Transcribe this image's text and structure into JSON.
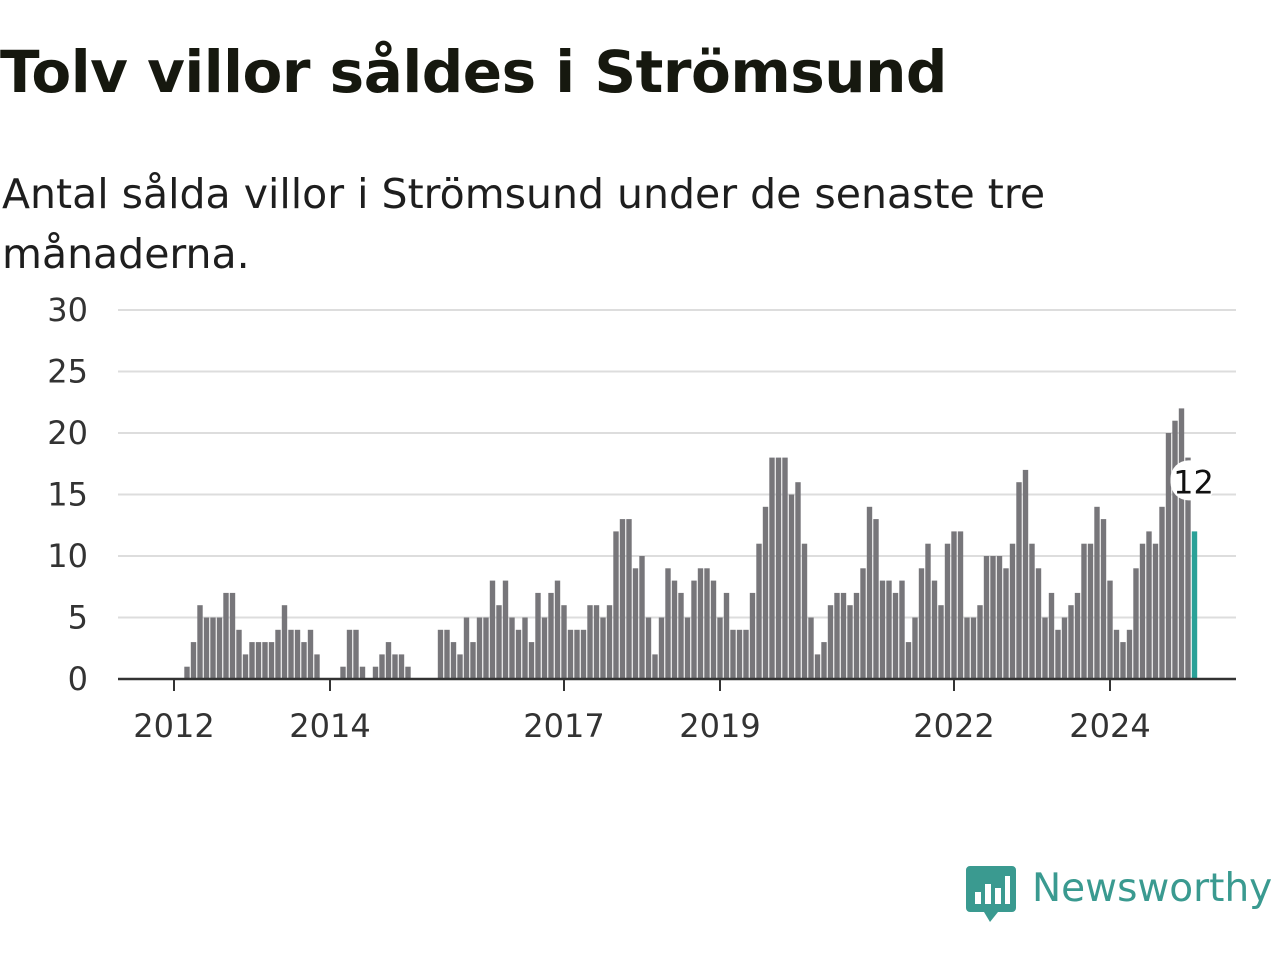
{
  "title": "Tolv villor såldes i Strömsund",
  "subtitle": "Antal sålda villor i Strömsund under de senaste tre månaderna.",
  "brand": {
    "name": "Newsworthy",
    "icon": "newsworthy-logo-icon",
    "color": "#3a9a90"
  },
  "chart_data": {
    "type": "bar",
    "title": "Tolv villor såldes i Strömsund",
    "subtitle": "Antal sålda villor i Strömsund under de senaste tre månaderna.",
    "xlabel": "",
    "ylabel": "",
    "ylim": [
      0,
      30
    ],
    "yticks": [
      "0",
      "5",
      "10",
      "15",
      "20",
      "25",
      "30"
    ],
    "grid": true,
    "xtick_labels": [
      {
        "label": "2012",
        "month_index": 0
      },
      {
        "label": "2014",
        "month_index": 24
      },
      {
        "label": "2017",
        "month_index": 60
      },
      {
        "label": "2019",
        "month_index": 84
      },
      {
        "label": "2022",
        "month_index": 120
      },
      {
        "label": "2024",
        "month_index": 144
      }
    ],
    "bar_color": "#77767a",
    "highlight_color": "#2aa198",
    "start_month_index": 1,
    "values": [
      0,
      1,
      3,
      6,
      5,
      5,
      5,
      7,
      7,
      4,
      2,
      3,
      3,
      3,
      3,
      4,
      6,
      4,
      4,
      3,
      4,
      2,
      0,
      0,
      0,
      1,
      4,
      4,
      1,
      0,
      1,
      2,
      3,
      2,
      2,
      1,
      0,
      0,
      0,
      0,
      4,
      4,
      3,
      2,
      5,
      3,
      5,
      5,
      8,
      6,
      8,
      5,
      4,
      5,
      3,
      7,
      5,
      7,
      8,
      6,
      4,
      4,
      4,
      6,
      6,
      5,
      6,
      12,
      13,
      13,
      9,
      10,
      5,
      2,
      5,
      9,
      8,
      7,
      5,
      8,
      9,
      9,
      8,
      5,
      7,
      4,
      4,
      4,
      7,
      11,
      14,
      18,
      18,
      18,
      15,
      16,
      11,
      5,
      2,
      3,
      6,
      7,
      7,
      6,
      7,
      9,
      14,
      13,
      8,
      8,
      7,
      8,
      3,
      5,
      9,
      11,
      8,
      6,
      11,
      12,
      12,
      5,
      5,
      6,
      10,
      10,
      10,
      9,
      11,
      16,
      17,
      11,
      9,
      5,
      7,
      4,
      5,
      6,
      7,
      11,
      11,
      14,
      13,
      8,
      4,
      3,
      4,
      9,
      11,
      12,
      11,
      14,
      20,
      21,
      22,
      18,
      12
    ],
    "annotation": {
      "text": "12",
      "target": "last"
    }
  }
}
